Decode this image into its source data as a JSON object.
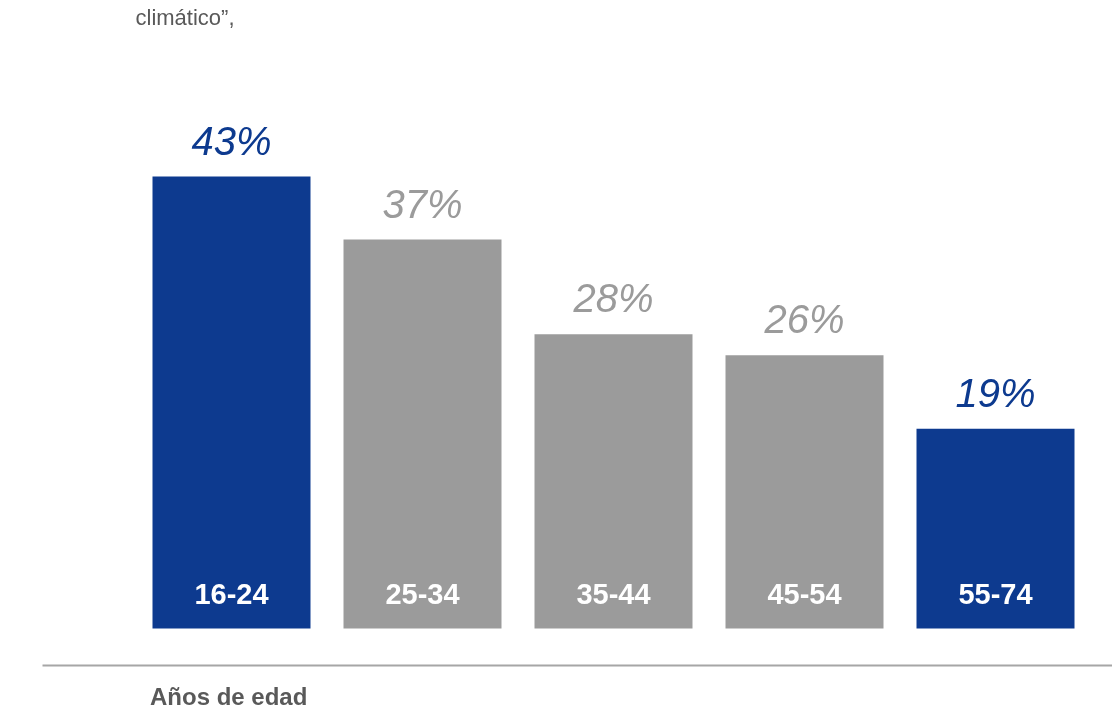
{
  "chart_data": {
    "type": "bar",
    "title": "climático”,",
    "xlabel": "Años de edad",
    "categories": [
      "16-24",
      "25-34",
      "35-44",
      "45-54",
      "55-74"
    ],
    "values": [
      43,
      37,
      28,
      26,
      19
    ],
    "value_labels": [
      "43%",
      "37%",
      "28%",
      "26%",
      "19%"
    ],
    "colors": [
      "#0d3a8f",
      "#9b9b9b",
      "#9b9b9b",
      "#9b9b9b",
      "#0d3a8f"
    ],
    "grid": false
  }
}
